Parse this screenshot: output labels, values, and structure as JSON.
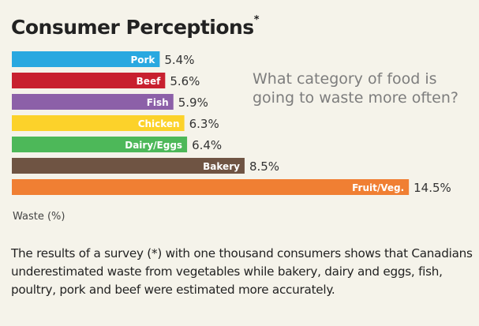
{
  "title": "Consumer Perceptions",
  "title_mark": "*",
  "question": "What category of food is going to waste more often?",
  "unit_label": "Waste (%)",
  "description": "The results of a survey (*) with one thousand consumers shows that Canadians underestimated waste from vegetables while bakery, dairy and eggs, fish, poultry, pork and beef were estimated more accurately.",
  "chart_data": {
    "type": "bar",
    "orientation": "horizontal",
    "categories": [
      "Pork",
      "Beef",
      "Fish",
      "Chicken",
      "Dairy/Eggs",
      "Bakery",
      "Fruit/Veg."
    ],
    "values": [
      5.4,
      5.6,
      5.9,
      6.3,
      6.4,
      8.5,
      14.5
    ],
    "value_labels": [
      "5.4%",
      "5.6%",
      "5.9%",
      "6.3%",
      "6.4%",
      "8.5%",
      "14.5%"
    ],
    "colors": [
      "#29a8e0",
      "#c8202f",
      "#8c60a8",
      "#fcd22a",
      "#4db859",
      "#6f5443",
      "#f07f33"
    ],
    "xlabel": "Waste (%)",
    "ylabel": "",
    "grid": false,
    "legend": "none"
  }
}
